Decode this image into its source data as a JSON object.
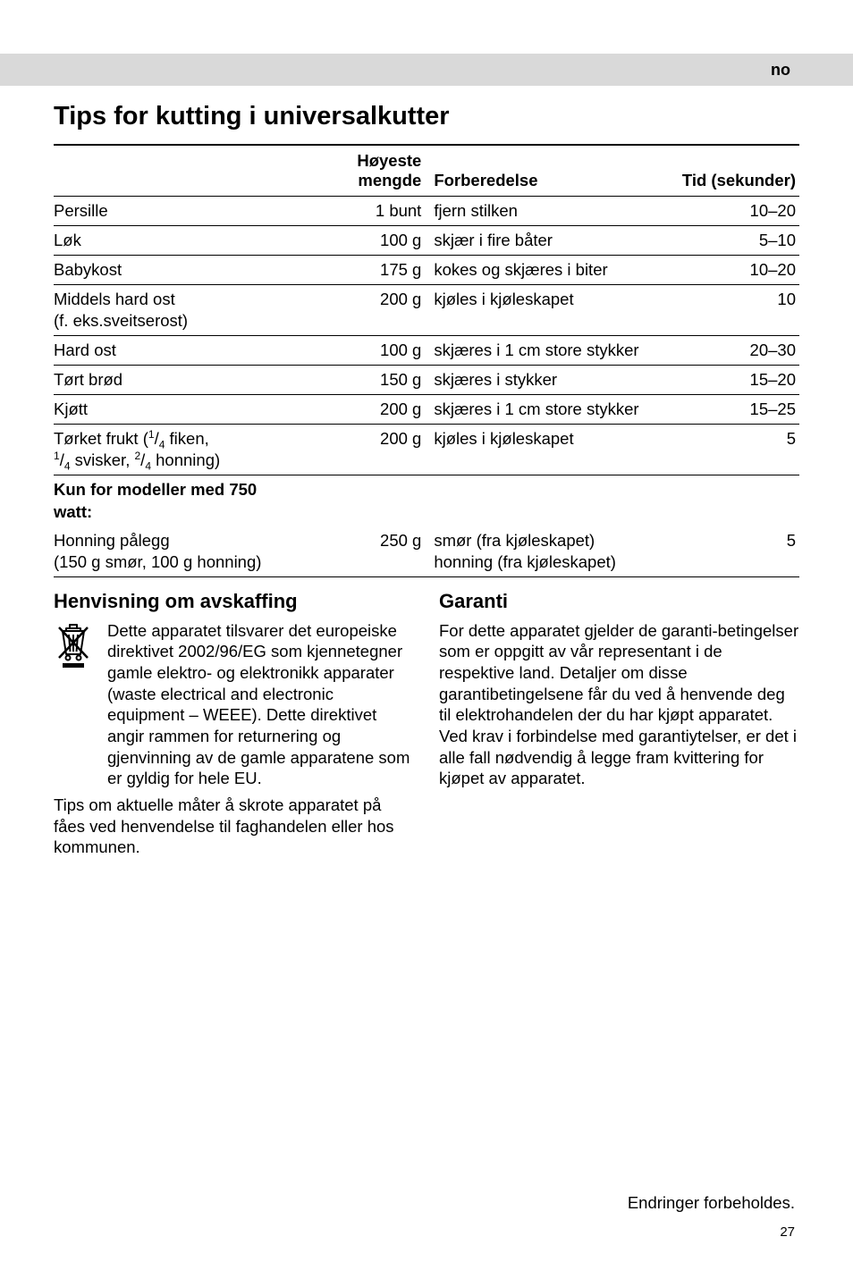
{
  "lang_badge": "no",
  "title": "Tips for kutting i universalkutter",
  "table": {
    "columns": [
      "",
      "Høyeste mengde",
      "Forberedelse",
      "Tid (sekunder)"
    ],
    "rows": [
      {
        "item": "Persille",
        "amount": "1 bunt",
        "prep": "fjern stilken",
        "time": "10–20"
      },
      {
        "item": "Løk",
        "amount": "100 g",
        "prep": "skjær i fire båter",
        "time": "5–10"
      },
      {
        "item": "Babykost",
        "amount": "175 g",
        "prep": "kokes og skjæres i biter",
        "time": "10–20"
      },
      {
        "item": "Middels hard ost\n(f. eks.sveitserost)",
        "amount": "200 g",
        "prep": "kjøles i kjøleskapet",
        "time": "10"
      },
      {
        "item": "Hard ost",
        "amount": "100 g",
        "prep": "skjæres i 1 cm store stykker",
        "time": "20–30"
      },
      {
        "item": "Tørt brød",
        "amount": "150 g",
        "prep": "skjæres i stykker",
        "time": "15–20"
      },
      {
        "item": "Kjøtt",
        "amount": "200 g",
        "prep": "skjæres i 1 cm store stykker",
        "time": "15–25"
      }
    ],
    "dried_fruit": {
      "label_pre": "Tørket frukt (",
      "f1_n": "1",
      "f1_d": "4",
      "f1_txt": " fiken,",
      "f2_n": "1",
      "f2_d": "4",
      "f2_txt": " svisker, ",
      "f3_n": "2",
      "f3_d": "4",
      "f3_txt": " honning)",
      "amount": "200 g",
      "prep": "kjøles i kjøleskapet",
      "time": "5"
    },
    "model_heading": "Kun for modeller med 750 watt:",
    "honey": {
      "item": "Honning pålegg\n(150 g smør, 100 g honning)",
      "amount": "250 g",
      "prep": "smør (fra kjøleskapet)\nhonning (fra kjøleskapet)",
      "time": "5"
    }
  },
  "disposal": {
    "heading": "Henvisning om avskaffing",
    "para1": "Dette apparatet tilsvarer det europeiske direktivet 2002/96/EG som kjennetegner gamle elektro- og elektronikk apparater (waste electrical and electronic equipment – WEEE). Dette direktivet angir rammen for returnering og gjenvinning av de gamle apparatene som er gyldig for hele EU.",
    "para2": "Tips om aktuelle måter å skrote apparatet på fåes ved henvendelse til faghandelen eller hos kommunen."
  },
  "warranty": {
    "heading": "Garanti",
    "para": "For dette apparatet gjelder de garanti-betingelser som er oppgitt av vår representant i de respektive land. Detaljer om disse garantibetingelsene får du ved å henvende deg til elektrohandelen der du har kjøpt apparatet. Ved krav i forbindelse med garantiytelser, er det i alle fall nødvendig å legge fram kvittering for kjøpet av apparatet."
  },
  "footer": "Endringer forbeholdes.",
  "page_number": "27"
}
